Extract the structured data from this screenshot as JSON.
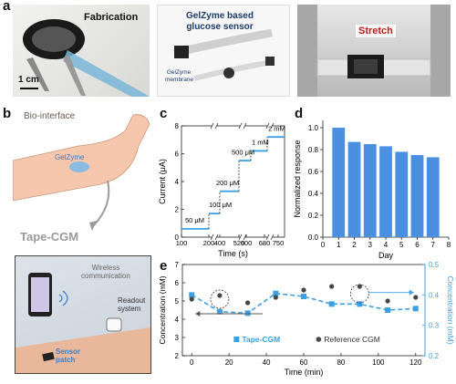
{
  "panels": {
    "a": {
      "letter": "a",
      "photo1": {
        "title": "Fabrication",
        "scalebar": "1 cm"
      },
      "photo2": {
        "title_line1": "GelZyme based",
        "title_line2": "glucose sensor",
        "membrane_line1": "GelZyme",
        "membrane_line2": "membrane"
      },
      "photo3": {
        "title": "Stretch"
      }
    },
    "b": {
      "letter": "b",
      "bio_interface": "Bio-interface",
      "gelzyme": "GelZyme",
      "tape_cgm": "Tape-CGM",
      "wireless_line1": "Wireless",
      "wireless_line2": "communication",
      "readout_line1": "Readout",
      "readout_line2": "system",
      "sensor_line1": "Sensor",
      "sensor_line2": "patch"
    },
    "c": {
      "letter": "c"
    },
    "d": {
      "letter": "d"
    },
    "e": {
      "letter": "e"
    }
  },
  "colors": {
    "accent_blue": "#3da0e3",
    "dark_point": "#454545",
    "dashed": "#222222",
    "bar_blue": "#4b8fe0"
  },
  "chart_data": [
    {
      "id": "c",
      "type": "line",
      "xlabel": "Time (s)",
      "ylabel": "Current  (μA)",
      "ylim": [
        0,
        8
      ],
      "yticks": [
        "0",
        "2",
        "4",
        "6",
        "8"
      ],
      "xticks": [
        "100",
        "200",
        "400",
        "520",
        "600",
        "680",
        "750"
      ],
      "axis_breaks": true,
      "annotations": [
        "50 μM",
        "100 μM",
        "200 μM",
        "500 μM",
        "1 mM",
        "2 mM"
      ],
      "steps_current_uA": [
        0.6,
        1.7,
        3.3,
        5.5,
        6.2,
        7.2
      ]
    },
    {
      "id": "d",
      "type": "bar",
      "xlabel": "Day",
      "ylabel": "Normalized response",
      "xlim": [
        0,
        8
      ],
      "ylim": [
        0.0,
        1.0
      ],
      "xticks": [
        "0",
        "1",
        "2",
        "3",
        "4",
        "5",
        "6",
        "7",
        "8"
      ],
      "yticks": [
        "0.0",
        "0.2",
        "0.4",
        "0.6",
        "0.8",
        "1.0"
      ],
      "categories": [
        1,
        2,
        3,
        4,
        5,
        6,
        7
      ],
      "values": [
        1.0,
        0.87,
        0.85,
        0.83,
        0.78,
        0.75,
        0.73
      ]
    },
    {
      "id": "e",
      "type": "scatter",
      "xlabel": "Time (min)",
      "ylabel_left": "Concentration (mM)",
      "ylabel_right": "Concentration (mM)",
      "xlim": [
        -5,
        125
      ],
      "ylim_left": [
        2,
        7
      ],
      "ylim_right": [
        0.2,
        0.5
      ],
      "xticks": [
        "0",
        "20",
        "40",
        "60",
        "80",
        "100",
        "120"
      ],
      "yticks_left": [
        "2",
        "3",
        "4",
        "5",
        "6",
        "7"
      ],
      "yticks_right": [
        "0.2",
        "0.3",
        "0.4",
        "0.5"
      ],
      "series": [
        {
          "name": "Tape-CGM",
          "axis": "right",
          "x": [
            0,
            15,
            30,
            45,
            60,
            75,
            90,
            105,
            120
          ],
          "y": [
            0.4,
            0.345,
            0.34,
            0.405,
            0.395,
            0.37,
            0.37,
            0.35,
            0.355
          ]
        },
        {
          "name": "Reference CGM",
          "axis": "left",
          "x": [
            0,
            15,
            30,
            45,
            60,
            75,
            90,
            105,
            120
          ],
          "y": [
            5.1,
            5.3,
            4.9,
            5.2,
            5.6,
            5.8,
            5.8,
            5.0,
            5.2
          ]
        }
      ]
    }
  ]
}
